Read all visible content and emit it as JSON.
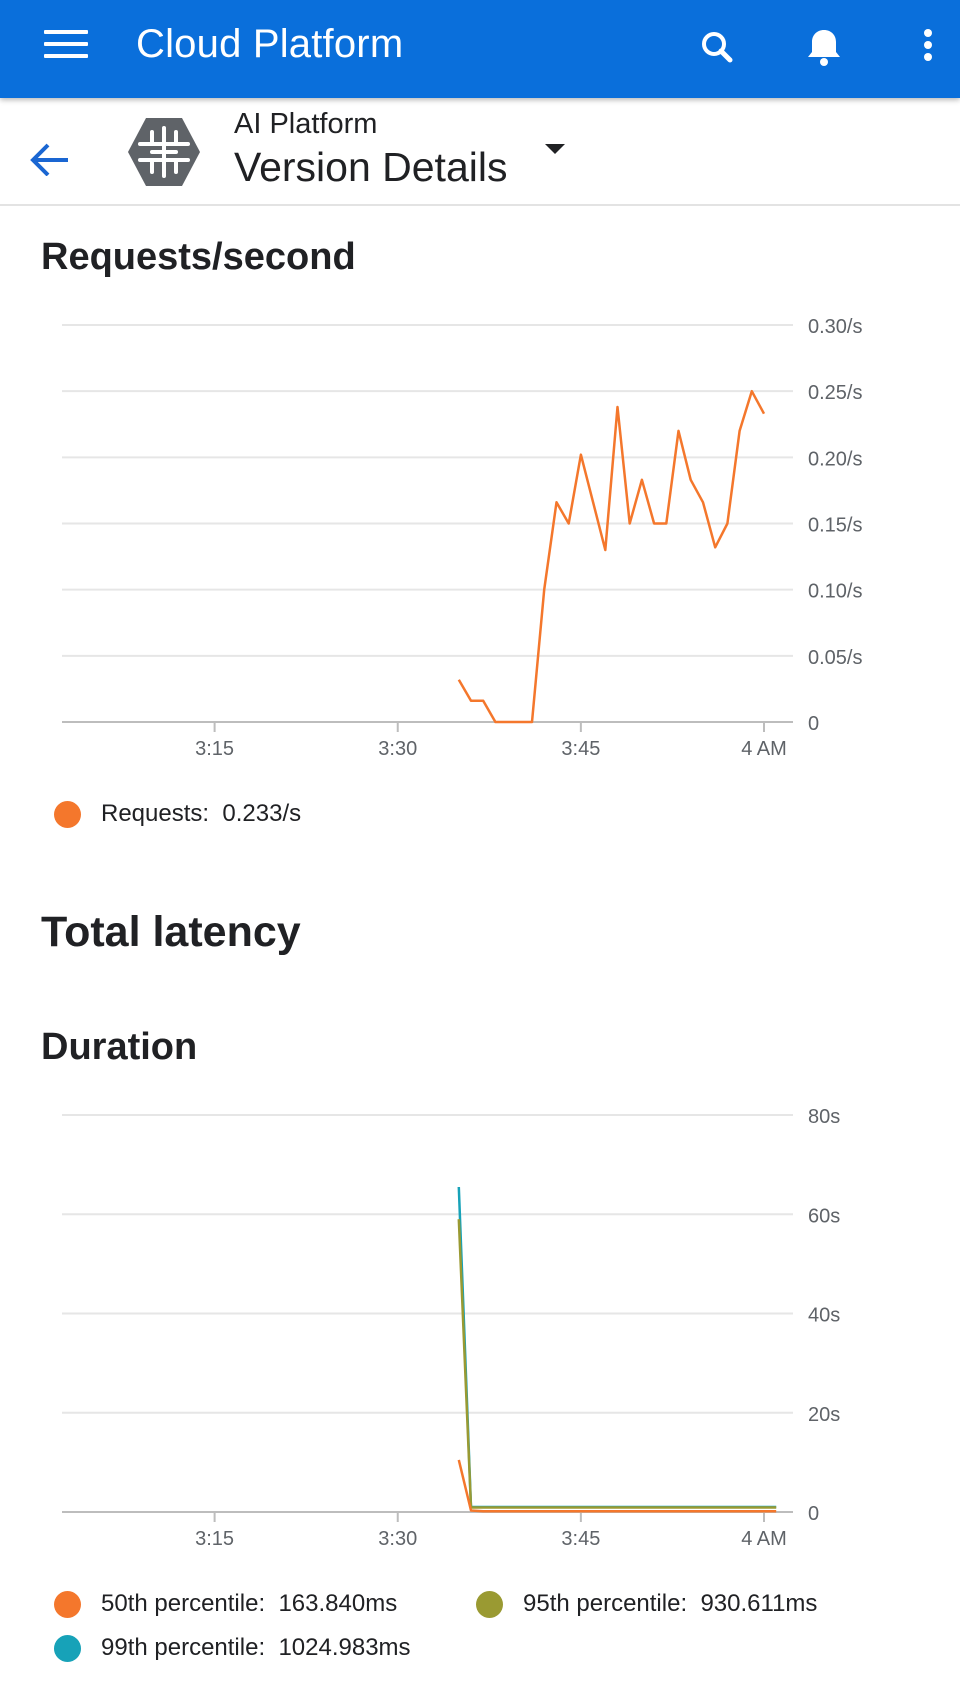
{
  "app_bar": {
    "title": "Cloud Platform",
    "icons": [
      "menu-icon",
      "search-icon",
      "bell-icon",
      "more-vert-icon"
    ],
    "color": "#0a6fdb"
  },
  "sub_header": {
    "product": "AI Platform",
    "page": "Version Details"
  },
  "requests_section": {
    "title": "Requests/second",
    "legend": [
      {
        "label": "Requests:",
        "value": "0.233/s",
        "color": "#f4772c"
      }
    ]
  },
  "latency_section": {
    "title": "Total latency"
  },
  "duration_section": {
    "title": "Duration",
    "legend": [
      {
        "label": "50th percentile:",
        "value": "163.840ms",
        "color": "#f4772c"
      },
      {
        "label": "95th percentile:",
        "value": "930.611ms",
        "color": "#9a9a32"
      },
      {
        "label": "99th percentile:",
        "value": "1024.983ms",
        "color": "#17a2b8"
      }
    ]
  },
  "chart_data": [
    {
      "type": "line",
      "title": "Requests/second",
      "x_ticks": [
        {
          "label": "3:15",
          "minute": 15
        },
        {
          "label": "3:30",
          "minute": 30
        },
        {
          "label": "3:45",
          "minute": 45
        },
        {
          "label": "4 AM",
          "minute": 60
        }
      ],
      "y_ticks": [
        {
          "label": "0",
          "v": 0
        },
        {
          "label": "0.05/s",
          "v": 0.05
        },
        {
          "label": "0.10/s",
          "v": 0.1
        },
        {
          "label": "0.15/s",
          "v": 0.15
        },
        {
          "label": "0.20/s",
          "v": 0.2
        },
        {
          "label": "0.25/s",
          "v": 0.25
        },
        {
          "label": "0.30/s",
          "v": 0.3
        }
      ],
      "x_range": [
        2.5,
        60
      ],
      "ylim": [
        0,
        0.3
      ],
      "grid": true,
      "series": [
        {
          "name": "Requests",
          "color": "#f4772c",
          "x": [
            35.0,
            36.0,
            37.0,
            38.0,
            39.0,
            40.0,
            41.0,
            42.0,
            43.0,
            44.0,
            45.0,
            46.0,
            47.0,
            48.0,
            49.0,
            50.0,
            51.0,
            52.0,
            53.0,
            54.0,
            55.0,
            56.0,
            57.0,
            58.0,
            59.0,
            60.0
          ],
          "y": [
            0.032,
            0.016,
            0.016,
            0.0,
            0.0,
            0.0,
            0.0,
            0.1,
            0.166,
            0.15,
            0.202,
            0.166,
            0.13,
            0.238,
            0.15,
            0.183,
            0.15,
            0.15,
            0.22,
            0.183,
            0.166,
            0.132,
            0.15,
            0.22,
            0.25,
            0.233
          ]
        }
      ]
    },
    {
      "type": "line",
      "title": "Duration",
      "x_ticks": [
        {
          "label": "3:15",
          "minute": 15
        },
        {
          "label": "3:30",
          "minute": 30
        },
        {
          "label": "3:45",
          "minute": 45
        },
        {
          "label": "4 AM",
          "minute": 60
        }
      ],
      "y_ticks": [
        {
          "label": "0",
          "v": 0
        },
        {
          "label": "20s",
          "v": 20
        },
        {
          "label": "40s",
          "v": 40
        },
        {
          "label": "60s",
          "v": 60
        },
        {
          "label": "80s",
          "v": 80
        }
      ],
      "x_range": [
        2.5,
        60
      ],
      "ylim": [
        0,
        80
      ],
      "grid": true,
      "series": [
        {
          "name": "99th percentile",
          "color": "#17a2b8",
          "x": [
            35.0,
            36.0,
            61.0
          ],
          "y": [
            65.5,
            1.0,
            1.0
          ]
        },
        {
          "name": "95th percentile",
          "color": "#9a9a32",
          "x": [
            35.0,
            36.0,
            61.0
          ],
          "y": [
            59.0,
            0.9,
            0.9
          ]
        },
        {
          "name": "50th percentile",
          "color": "#f4772c",
          "x": [
            35.0,
            36.0,
            37.0,
            61.0
          ],
          "y": [
            10.5,
            0.3,
            0.16,
            0.16
          ]
        }
      ]
    }
  ]
}
